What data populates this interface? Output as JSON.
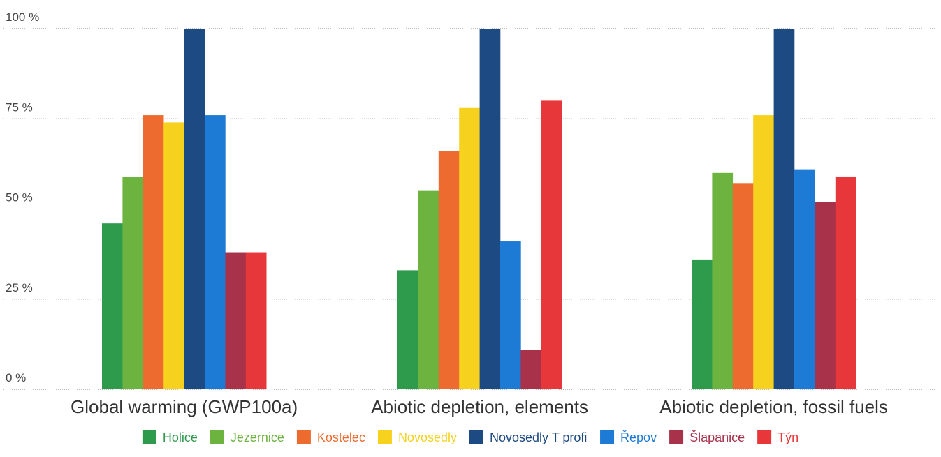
{
  "chart_data": {
    "type": "bar",
    "title": "",
    "xlabel": "",
    "ylabel": "",
    "ylim": [
      0,
      100
    ],
    "yticks": [
      {
        "value": 0,
        "label": "0 %"
      },
      {
        "value": 25,
        "label": "25 %"
      },
      {
        "value": 50,
        "label": "50 %"
      },
      {
        "value": 75,
        "label": "75 %"
      },
      {
        "value": 100,
        "label": "100 %"
      }
    ],
    "grid": true,
    "legend_position": "bottom",
    "categories": [
      "Global warming (GWP100a)",
      "Abiotic depletion, elements",
      "Abiotic depletion, fossil fuels"
    ],
    "series": [
      {
        "name": "Holice",
        "color": "#2e9a4c",
        "values": [
          46,
          33,
          36
        ]
      },
      {
        "name": "Jezernice",
        "color": "#6db33f",
        "values": [
          59,
          55,
          60
        ]
      },
      {
        "name": "Kostelec",
        "color": "#ee6b2f",
        "values": [
          76,
          66,
          57
        ]
      },
      {
        "name": "Novosedly",
        "color": "#f6d21e",
        "values": [
          74,
          78,
          76
        ]
      },
      {
        "name": "Novosedly T profi",
        "color": "#1d4a82",
        "values": [
          100,
          100,
          100
        ]
      },
      {
        "name": "Řepov",
        "color": "#1d7bd6",
        "values": [
          76,
          41,
          61
        ]
      },
      {
        "name": "Šlapanice",
        "color": "#a8324a",
        "values": [
          38,
          11,
          52
        ]
      },
      {
        "name": "Týn",
        "color": "#e8373a",
        "values": [
          38,
          80,
          59
        ]
      }
    ]
  }
}
